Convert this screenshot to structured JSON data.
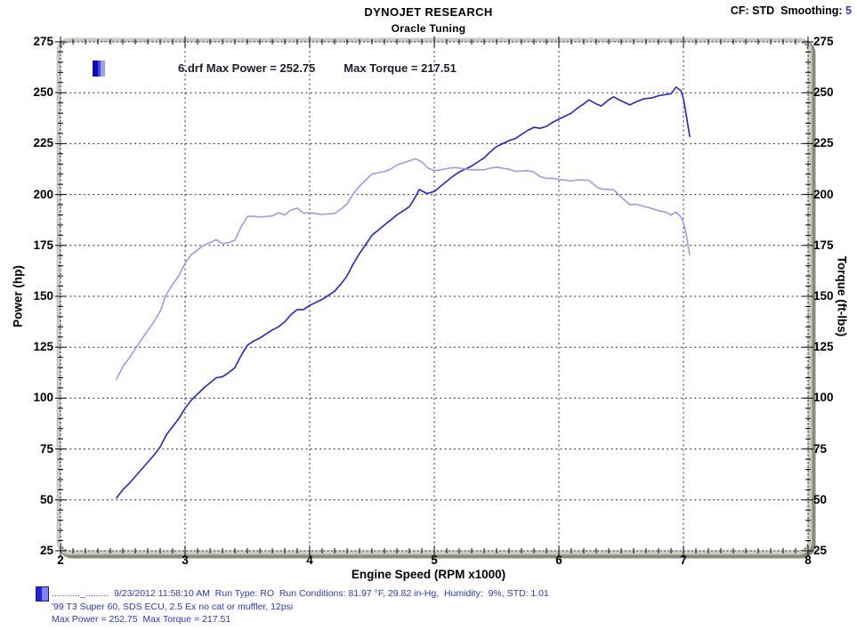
{
  "header": {
    "title": "DYNOJET RESEARCH",
    "subtitle": "Oracle Tuning",
    "cf": "CF: STD",
    "smoothing_label": "Smoothing:",
    "smoothing_value": "5"
  },
  "legend": {
    "text_power": "6.drf Max Power = 252.75",
    "text_torque": "Max Torque = 217.51"
  },
  "axes": {
    "y_left_title": "Power (hp)",
    "y_right_title": "Torque (ft-lbs)",
    "x_title": "Engine Speed (RPM x1000)",
    "y_ticks": [
      275,
      250,
      225,
      200,
      175,
      150,
      125,
      100,
      75,
      50,
      25
    ],
    "x_ticks": [
      2,
      3,
      4,
      5,
      6,
      7,
      8
    ]
  },
  "footer": {
    "line1": "..........._.........  9/23/2012 11:58:10 AM  Run Type: RO  Run Conditions: 81.97 °F, 29.82 in-Hg,  Humidity:  9%, STD: 1.01",
    "line2": "'99 T3 Super 60, SDS ECU, 2.5 Ex no cat or muffler, 12psi",
    "line3": "Max Power = 252.75  Max Torque = 217.51"
  },
  "colors": {
    "power_line": "#2525cd",
    "torque_line": "#9a9aef",
    "footer_text": "#2936d6",
    "grid": "#1a1a1a",
    "tick": "#000000",
    "frame_shadow": "#8a8a7e",
    "frame_tube": "#cccbc2"
  },
  "chart_data": {
    "type": "line",
    "title": "DYNOJET RESEARCH",
    "subtitle": "Oracle Tuning",
    "xlabel": "Engine Speed (RPM x1000)",
    "ylabel_left": "Power (hp)",
    "ylabel_right": "Torque (ft-lbs)",
    "x_range": [
      2,
      8
    ],
    "y_range": [
      25,
      275
    ],
    "x_major_step": 1,
    "x_minor_step": 0.1,
    "y_major_step": 25,
    "y_minor_step": 5,
    "grid": "dotted",
    "legend_position": "top-left",
    "max_power": 252.75,
    "max_torque": 217.51,
    "smoothing": 5,
    "correction_factor": "STD",
    "series": [
      {
        "name": "Power (hp)",
        "color_key": "power_line",
        "points": [
          [
            2.45,
            51
          ],
          [
            2.5,
            55
          ],
          [
            2.55,
            58
          ],
          [
            2.6,
            61.5
          ],
          [
            2.65,
            65
          ],
          [
            2.7,
            68.5
          ],
          [
            2.75,
            72
          ],
          [
            2.8,
            76
          ],
          [
            2.85,
            82
          ],
          [
            2.9,
            86
          ],
          [
            2.95,
            90
          ],
          [
            3.0,
            95
          ],
          [
            3.05,
            99
          ],
          [
            3.1,
            102
          ],
          [
            3.15,
            105
          ],
          [
            3.2,
            107.5
          ],
          [
            3.25,
            110
          ],
          [
            3.3,
            110.5
          ],
          [
            3.35,
            112.5
          ],
          [
            3.4,
            115
          ],
          [
            3.45,
            121
          ],
          [
            3.5,
            126
          ],
          [
            3.55,
            128
          ],
          [
            3.6,
            129.5
          ],
          [
            3.65,
            131.5
          ],
          [
            3.7,
            133.5
          ],
          [
            3.75,
            135
          ],
          [
            3.8,
            137.5
          ],
          [
            3.85,
            141
          ],
          [
            3.9,
            143.5
          ],
          [
            3.95,
            143.5
          ],
          [
            4.0,
            145.5
          ],
          [
            4.05,
            147
          ],
          [
            4.1,
            148.5
          ],
          [
            4.15,
            150.5
          ],
          [
            4.2,
            152.5
          ],
          [
            4.25,
            156
          ],
          [
            4.3,
            160
          ],
          [
            4.35,
            166
          ],
          [
            4.4,
            171
          ],
          [
            4.45,
            175.5
          ],
          [
            4.5,
            180
          ],
          [
            4.55,
            182.5
          ],
          [
            4.6,
            185
          ],
          [
            4.65,
            187.5
          ],
          [
            4.7,
            190
          ],
          [
            4.75,
            192
          ],
          [
            4.8,
            194
          ],
          [
            4.85,
            199
          ],
          [
            4.88,
            202.5
          ],
          [
            4.94,
            200.5
          ],
          [
            5.0,
            201.5
          ],
          [
            5.05,
            204
          ],
          [
            5.1,
            206.5
          ],
          [
            5.15,
            209
          ],
          [
            5.2,
            211
          ],
          [
            5.25,
            212.5
          ],
          [
            5.3,
            214
          ],
          [
            5.35,
            216
          ],
          [
            5.4,
            218
          ],
          [
            5.45,
            221
          ],
          [
            5.5,
            223.5
          ],
          [
            5.55,
            225
          ],
          [
            5.6,
            226.5
          ],
          [
            5.65,
            227.5
          ],
          [
            5.7,
            229.5
          ],
          [
            5.75,
            231.5
          ],
          [
            5.8,
            233
          ],
          [
            5.85,
            232.5
          ],
          [
            5.9,
            233.5
          ],
          [
            5.95,
            235.5
          ],
          [
            6.0,
            237
          ],
          [
            6.05,
            238.5
          ],
          [
            6.1,
            240
          ],
          [
            6.15,
            242.5
          ],
          [
            6.2,
            244.5
          ],
          [
            6.24,
            246.5
          ],
          [
            6.3,
            244.5
          ],
          [
            6.34,
            243.5
          ],
          [
            6.4,
            246.5
          ],
          [
            6.44,
            248
          ],
          [
            6.5,
            246
          ],
          [
            6.57,
            244
          ],
          [
            6.62,
            245.5
          ],
          [
            6.68,
            247
          ],
          [
            6.75,
            247.5
          ],
          [
            6.8,
            248.5
          ],
          [
            6.85,
            249
          ],
          [
            6.9,
            249.5
          ],
          [
            6.94,
            252.75
          ],
          [
            6.98,
            251
          ],
          [
            7.0,
            247
          ],
          [
            7.02,
            240
          ],
          [
            7.05,
            228.5
          ]
        ]
      },
      {
        "name": "Torque (ft-lbs)",
        "color_key": "torque_line",
        "points": [
          [
            2.45,
            109.3
          ],
          [
            2.5,
            115.5
          ],
          [
            2.55,
            119.5
          ],
          [
            2.6,
            124.2
          ],
          [
            2.65,
            128.8
          ],
          [
            2.7,
            133.2
          ],
          [
            2.75,
            137.5
          ],
          [
            2.8,
            142.6
          ],
          [
            2.85,
            151.1
          ],
          [
            2.9,
            155.8
          ],
          [
            2.95,
            160.2
          ],
          [
            3.0,
            166.3
          ],
          [
            3.05,
            170.5
          ],
          [
            3.1,
            172.8
          ],
          [
            3.15,
            175.1
          ],
          [
            3.2,
            176.4
          ],
          [
            3.25,
            177.8
          ],
          [
            3.3,
            175.9
          ],
          [
            3.35,
            176.3
          ],
          [
            3.4,
            177.6
          ],
          [
            3.45,
            184.2
          ],
          [
            3.5,
            189.1
          ],
          [
            3.55,
            189.4
          ],
          [
            3.6,
            188.9
          ],
          [
            3.65,
            189.2
          ],
          [
            3.7,
            189.5
          ],
          [
            3.75,
            191
          ],
          [
            3.8,
            190
          ],
          [
            3.85,
            192.4
          ],
          [
            3.9,
            193.3
          ],
          [
            3.95,
            190.8
          ],
          [
            4.0,
            191
          ],
          [
            4.05,
            190.6
          ],
          [
            4.1,
            190.2
          ],
          [
            4.15,
            190.5
          ],
          [
            4.2,
            190.7
          ],
          [
            4.25,
            192.8
          ],
          [
            4.3,
            195.4
          ],
          [
            4.35,
            200.4
          ],
          [
            4.4,
            204.1
          ],
          [
            4.45,
            207.1
          ],
          [
            4.5,
            210.1
          ],
          [
            4.55,
            210.7
          ],
          [
            4.6,
            211.3
          ],
          [
            4.65,
            212.5
          ],
          [
            4.7,
            214.5
          ],
          [
            4.75,
            215.5
          ],
          [
            4.8,
            216.5
          ],
          [
            4.85,
            217.51
          ],
          [
            4.9,
            216
          ],
          [
            4.95,
            213
          ],
          [
            5.0,
            211.7
          ],
          [
            5.05,
            212.1
          ],
          [
            5.1,
            212.7
          ],
          [
            5.15,
            213.2
          ],
          [
            5.2,
            213.1
          ],
          [
            5.25,
            212.5
          ],
          [
            5.3,
            212.1
          ],
          [
            5.35,
            212.2
          ],
          [
            5.4,
            212.1
          ],
          [
            5.45,
            213
          ],
          [
            5.5,
            213.5
          ],
          [
            5.55,
            212.9
          ],
          [
            5.6,
            212.4
          ],
          [
            5.65,
            211.4
          ],
          [
            5.7,
            211.5
          ],
          [
            5.75,
            211.7
          ],
          [
            5.8,
            211
          ],
          [
            5.85,
            208.8
          ],
          [
            5.9,
            207.9
          ],
          [
            5.95,
            208
          ],
          [
            6.0,
            207.4
          ],
          [
            6.05,
            207.1
          ],
          [
            6.1,
            206.6
          ],
          [
            6.15,
            207.2
          ],
          [
            6.2,
            207.1
          ],
          [
            6.24,
            207
          ],
          [
            6.3,
            203.9
          ],
          [
            6.34,
            202.7
          ],
          [
            6.4,
            202.5
          ],
          [
            6.44,
            202.3
          ],
          [
            6.5,
            198.7
          ],
          [
            6.57,
            195
          ],
          [
            6.62,
            195.3
          ],
          [
            6.68,
            194.2
          ],
          [
            6.75,
            193.1
          ],
          [
            6.8,
            192
          ],
          [
            6.85,
            191.5
          ],
          [
            6.9,
            190
          ],
          [
            6.94,
            191.3
          ],
          [
            6.98,
            189
          ],
          [
            7.0,
            186
          ],
          [
            7.02,
            181
          ],
          [
            7.05,
            170.5
          ]
        ]
      }
    ]
  }
}
